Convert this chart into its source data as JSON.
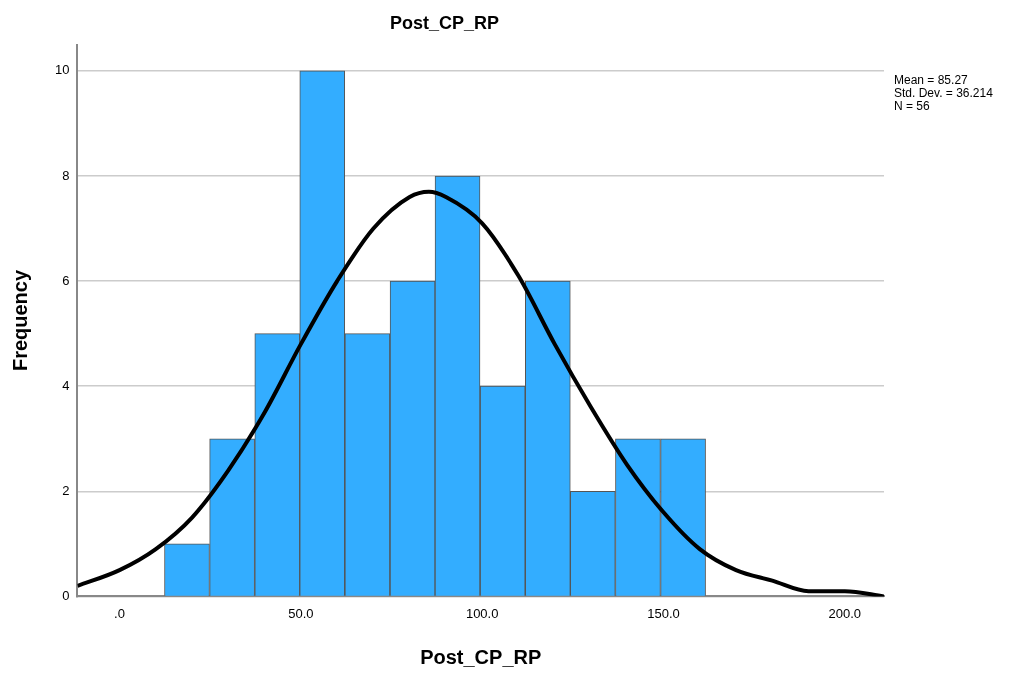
{
  "chart_data": {
    "type": "histogram",
    "title": "Post_CP_RP",
    "xlabel": "Post_CP_RP",
    "ylabel": "Frequency",
    "bins": [
      12.4,
      24.8,
      37.3,
      49.7,
      62.1,
      74.6,
      87.0,
      99.4,
      111.9,
      124.3,
      136.7,
      149.2,
      161.6
    ],
    "values": [
      1,
      3,
      5,
      10,
      5,
      6,
      8,
      4,
      6,
      2,
      3,
      3
    ],
    "color": "#33adff",
    "series": [
      {
        "type": "line",
        "color": "#000000",
        "marker": "none",
        "x": [
          -11.6,
          0,
          10,
          20,
          30,
          40,
          50,
          60,
          70,
          80,
          85.3,
          90,
          100,
          110,
          120,
          130,
          140,
          150,
          160,
          170,
          180,
          190,
          200,
          210.8
        ],
        "values": [
          0.2,
          0.5,
          0.9,
          1.5,
          2.4,
          3.5,
          4.8,
          6.0,
          7.0,
          7.6,
          7.7,
          7.6,
          7.1,
          6.1,
          4.8,
          3.6,
          2.5,
          1.6,
          0.9,
          0.5,
          0.3,
          0.1,
          0.1,
          0.0
        ]
      }
    ],
    "xlim": [
      -11.6,
      210.8
    ],
    "xticks": [
      {
        "value": 0,
        "label": ".0"
      },
      {
        "value": 50,
        "label": "50.0"
      },
      {
        "value": 100,
        "label": "100.0"
      },
      {
        "value": 150,
        "label": "150.0"
      },
      {
        "value": 200,
        "label": "200.0"
      }
    ],
    "ylim": [
      0,
      10.5
    ],
    "yticks": [
      0,
      2,
      4,
      6,
      8,
      10
    ],
    "grid": "y",
    "legend": false,
    "annotations": [
      "Mean = 85.27",
      "Std. Dev. = 36.214",
      "N = 56"
    ]
  }
}
